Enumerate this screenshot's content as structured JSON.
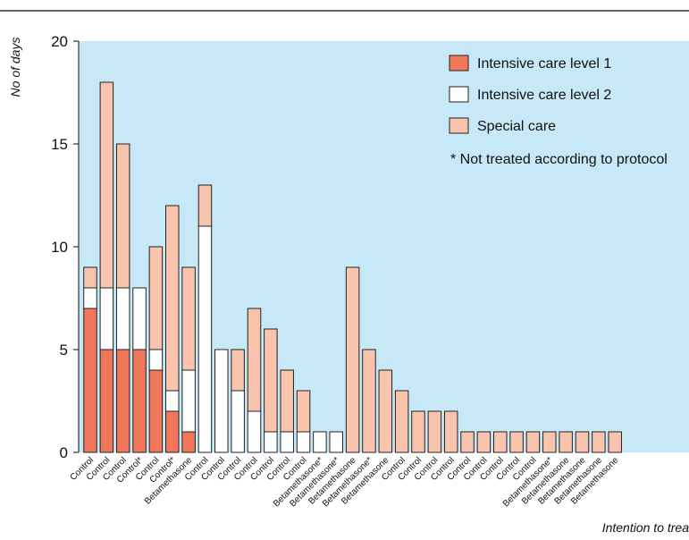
{
  "chart_data": {
    "type": "bar",
    "stacked": true,
    "title": "",
    "ylabel": "No of days",
    "xlabel": "Intention to trea",
    "ylim": [
      0,
      20
    ],
    "yticks": [
      "0",
      "5",
      "10",
      "15",
      "20"
    ],
    "categories": [
      "Control",
      "Control",
      "Control",
      "Control*",
      "Control",
      "Control*",
      "Betamethasone",
      "Control",
      "Control",
      "Control",
      "Control",
      "Control",
      "Control",
      "Control",
      "Betamethasone*",
      "Betamethasone*",
      "Betamethasone",
      "Betamethasone*",
      "Betamethasone",
      "Control",
      "Control",
      "Control",
      "Control",
      "Control",
      "Control",
      "Control",
      "Control",
      "Control",
      "Betamethasone*",
      "Betamethasone",
      "Betamethasone",
      "Betamethasone",
      "Betamethasone"
    ],
    "series": [
      {
        "name": "Intensive care level 1",
        "values": [
          7,
          5,
          5,
          5,
          4,
          2,
          1,
          0,
          0,
          0,
          0,
          0,
          0,
          0,
          0,
          0,
          0,
          0,
          0,
          0,
          0,
          0,
          0,
          0,
          0,
          0,
          0,
          0,
          0,
          0,
          0,
          0,
          0
        ]
      },
      {
        "name": "Intensive care level 2",
        "values": [
          1,
          3,
          3,
          3,
          1,
          1,
          3,
          11,
          5,
          3,
          2,
          1,
          1,
          1,
          1,
          1,
          0,
          0,
          0,
          0,
          0,
          0,
          0,
          0,
          0,
          0,
          0,
          0,
          0,
          0,
          0,
          0,
          0
        ]
      },
      {
        "name": "Special care",
        "values": [
          1,
          10,
          7,
          0,
          5,
          9,
          5,
          2,
          0,
          2,
          5,
          5,
          3,
          2,
          0,
          0,
          9,
          5,
          4,
          3,
          2,
          2,
          2,
          1,
          1,
          1,
          1,
          1,
          1,
          1,
          1,
          1,
          1
        ]
      }
    ],
    "colors": {
      "Intensive care level 1": "#f0775a",
      "Intensive care level 2": "#ffffff",
      "Special care": "#f8c4ae",
      "plot_background": "#c7e8f6"
    },
    "legend_position": "top-right",
    "legend_note": "* Not treated according to protocol",
    "grid": false
  }
}
